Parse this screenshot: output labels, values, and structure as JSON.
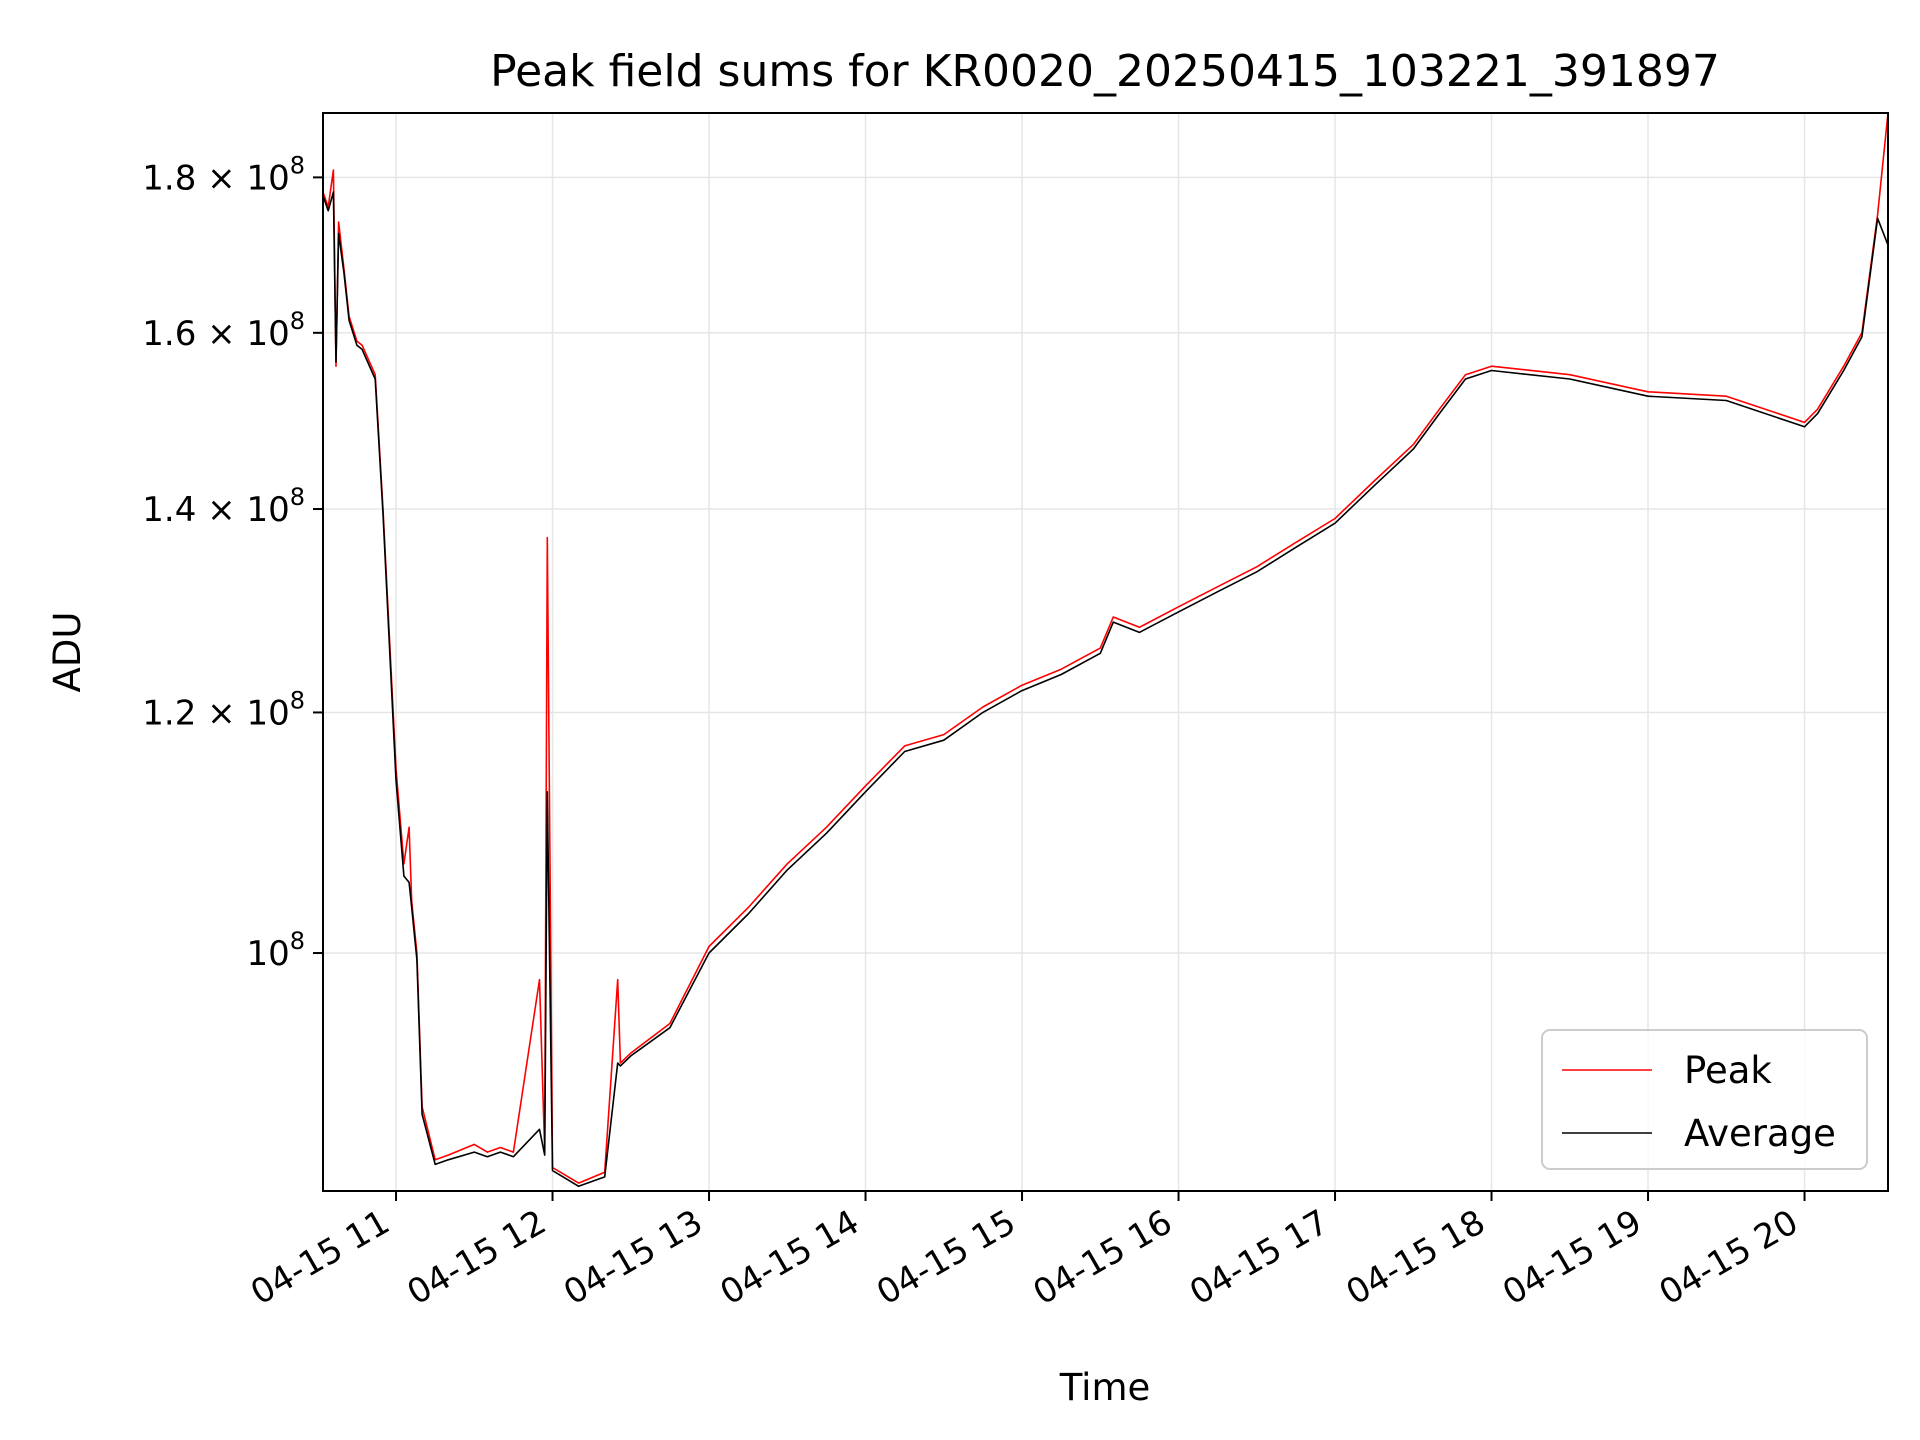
{
  "chart_data": {
    "type": "line",
    "title": "Peak field sums for KR0020_20250415_103221_391897",
    "xlabel": "Time",
    "ylabel": "ADU",
    "yscale": "log",
    "grid": true,
    "legend_position": "lower-right",
    "xlim": [
      "2025-04-15T10:32",
      "2025-04-15T20:32"
    ],
    "ylim": [
      83500000,
      189000000
    ],
    "x_ticks": [
      {
        "value": "2025-04-15T11:00",
        "label": "04-15 11"
      },
      {
        "value": "2025-04-15T12:00",
        "label": "04-15 12"
      },
      {
        "value": "2025-04-15T13:00",
        "label": "04-15 13"
      },
      {
        "value": "2025-04-15T14:00",
        "label": "04-15 14"
      },
      {
        "value": "2025-04-15T15:00",
        "label": "04-15 15"
      },
      {
        "value": "2025-04-15T16:00",
        "label": "04-15 16"
      },
      {
        "value": "2025-04-15T17:00",
        "label": "04-15 17"
      },
      {
        "value": "2025-04-15T18:00",
        "label": "04-15 18"
      },
      {
        "value": "2025-04-15T19:00",
        "label": "04-15 19"
      },
      {
        "value": "2025-04-15T20:00",
        "label": "04-15 20"
      }
    ],
    "y_ticks": [
      {
        "value": 100000000,
        "mantissa": "",
        "base": "10",
        "exp": "8"
      },
      {
        "value": 120000000,
        "mantissa": "1.2 × ",
        "base": "10",
        "exp": "8"
      },
      {
        "value": 140000000,
        "mantissa": "1.4 × ",
        "base": "10",
        "exp": "8"
      },
      {
        "value": 160000000,
        "mantissa": "1.6 × ",
        "base": "10",
        "exp": "8"
      },
      {
        "value": 180000000,
        "mantissa": "1.8 × ",
        "base": "10",
        "exp": "8"
      }
    ],
    "series": [
      {
        "name": "Peak",
        "color": "#ff0000",
        "x": [
          "2025-04-15T10:32",
          "2025-04-15T10:34",
          "2025-04-15T10:36",
          "2025-04-15T10:37",
          "2025-04-15T10:38",
          "2025-04-15T10:40",
          "2025-04-15T10:42",
          "2025-04-15T10:45",
          "2025-04-15T10:47",
          "2025-04-15T10:52",
          "2025-04-15T10:55",
          "2025-04-15T11:00",
          "2025-04-15T11:03",
          "2025-04-15T11:05",
          "2025-04-15T11:06",
          "2025-04-15T11:08",
          "2025-04-15T11:10",
          "2025-04-15T11:15",
          "2025-04-15T11:20",
          "2025-04-15T11:30",
          "2025-04-15T11:35",
          "2025-04-15T11:40",
          "2025-04-15T11:45",
          "2025-04-15T11:55",
          "2025-04-15T11:57",
          "2025-04-15T11:58",
          "2025-04-15T12:00",
          "2025-04-15T12:05",
          "2025-04-15T12:10",
          "2025-04-15T12:20",
          "2025-04-15T12:25",
          "2025-04-15T12:26",
          "2025-04-15T12:30",
          "2025-04-15T12:45",
          "2025-04-15T13:00",
          "2025-04-15T13:15",
          "2025-04-15T13:30",
          "2025-04-15T13:45",
          "2025-04-15T14:00",
          "2025-04-15T14:15",
          "2025-04-15T14:30",
          "2025-04-15T14:45",
          "2025-04-15T15:00",
          "2025-04-15T15:15",
          "2025-04-15T15:30",
          "2025-04-15T15:35",
          "2025-04-15T15:45",
          "2025-04-15T16:00",
          "2025-04-15T16:15",
          "2025-04-15T16:30",
          "2025-04-15T16:45",
          "2025-04-15T17:00",
          "2025-04-15T17:15",
          "2025-04-15T17:30",
          "2025-04-15T17:40",
          "2025-04-15T17:50",
          "2025-04-15T18:00",
          "2025-04-15T18:30",
          "2025-04-15T19:00",
          "2025-04-15T19:30",
          "2025-04-15T19:55",
          "2025-04-15T20:00",
          "2025-04-15T20:05",
          "2025-04-15T20:15",
          "2025-04-15T20:22",
          "2025-04-15T20:28",
          "2025-04-15T20:32"
        ],
        "y": [
          178000000,
          176000000,
          181000000,
          156000000,
          174000000,
          168000000,
          162000000,
          159000000,
          158500000,
          155000000,
          140000000,
          115000000,
          107000000,
          110000000,
          104000000,
          100000000,
          89000000,
          85500000,
          85800000,
          86500000,
          86000000,
          86300000,
          86000000,
          98000000,
          86000000,
          137000000,
          85000000,
          84500000,
          84000000,
          84700000,
          98000000,
          92000000,
          92700000,
          94800000,
          100500000,
          103500000,
          107000000,
          110000000,
          113500000,
          117000000,
          118000000,
          120500000,
          122500000,
          124000000,
          126000000,
          129000000,
          128000000,
          130000000,
          132000000,
          134000000,
          136500000,
          139000000,
          143000000,
          147000000,
          151000000,
          155000000,
          156000000,
          155000000,
          153000000,
          152500000,
          150000000,
          149500000,
          151000000,
          156000000,
          160000000,
          175000000,
          189000000
        ]
      },
      {
        "name": "Average",
        "color": "#000000",
        "x": [
          "2025-04-15T10:32",
          "2025-04-15T10:34",
          "2025-04-15T10:36",
          "2025-04-15T10:37",
          "2025-04-15T10:38",
          "2025-04-15T10:40",
          "2025-04-15T10:42",
          "2025-04-15T10:45",
          "2025-04-15T10:47",
          "2025-04-15T10:52",
          "2025-04-15T10:55",
          "2025-04-15T11:00",
          "2025-04-15T11:03",
          "2025-04-15T11:05",
          "2025-04-15T11:06",
          "2025-04-15T11:08",
          "2025-04-15T11:10",
          "2025-04-15T11:15",
          "2025-04-15T11:20",
          "2025-04-15T11:30",
          "2025-04-15T11:35",
          "2025-04-15T11:40",
          "2025-04-15T11:45",
          "2025-04-15T11:55",
          "2025-04-15T11:57",
          "2025-04-15T11:58",
          "2025-04-15T12:00",
          "2025-04-15T12:05",
          "2025-04-15T12:10",
          "2025-04-15T12:20",
          "2025-04-15T12:25",
          "2025-04-15T12:26",
          "2025-04-15T12:30",
          "2025-04-15T12:45",
          "2025-04-15T13:00",
          "2025-04-15T13:15",
          "2025-04-15T13:30",
          "2025-04-15T13:45",
          "2025-04-15T14:00",
          "2025-04-15T14:15",
          "2025-04-15T14:30",
          "2025-04-15T14:45",
          "2025-04-15T15:00",
          "2025-04-15T15:15",
          "2025-04-15T15:30",
          "2025-04-15T15:35",
          "2025-04-15T15:45",
          "2025-04-15T16:00",
          "2025-04-15T16:15",
          "2025-04-15T16:30",
          "2025-04-15T16:45",
          "2025-04-15T17:00",
          "2025-04-15T17:15",
          "2025-04-15T17:30",
          "2025-04-15T17:40",
          "2025-04-15T17:50",
          "2025-04-15T18:00",
          "2025-04-15T18:30",
          "2025-04-15T19:00",
          "2025-04-15T19:30",
          "2025-04-15T19:55",
          "2025-04-15T20:00",
          "2025-04-15T20:05",
          "2025-04-15T20:15",
          "2025-04-15T20:22",
          "2025-04-15T20:28",
          "2025-04-15T20:32"
        ],
        "y": [
          177500000,
          175500000,
          178000000,
          156500000,
          172500000,
          167500000,
          161500000,
          158500000,
          158000000,
          154500000,
          139500000,
          114000000,
          106000000,
          105500000,
          103500000,
          99500000,
          88500000,
          85200000,
          85500000,
          86000000,
          85700000,
          86000000,
          85700000,
          87500000,
          85800000,
          113000000,
          84800000,
          84300000,
          83800000,
          84400000,
          92000000,
          91800000,
          92500000,
          94500000,
          100000000,
          103000000,
          106500000,
          109500000,
          113000000,
          116500000,
          117500000,
          120000000,
          122000000,
          123500000,
          125500000,
          128500000,
          127500000,
          129500000,
          131500000,
          133500000,
          136000000,
          138500000,
          142500000,
          146500000,
          150500000,
          154500000,
          155500000,
          154500000,
          152500000,
          152000000,
          149500000,
          149000000,
          150500000,
          155500000,
          159500000,
          174500000,
          171000000
        ]
      }
    ]
  }
}
